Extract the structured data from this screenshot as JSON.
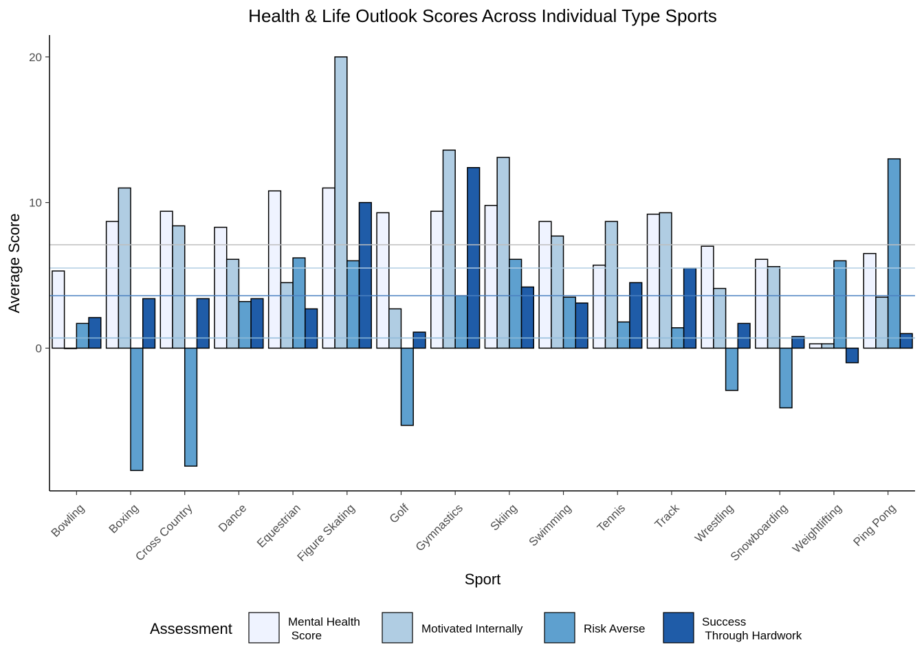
{
  "chart_data": {
    "type": "bar",
    "title": "Health & Life Outlook Scores Across Individual Type Sports",
    "xlabel": "Sport",
    "ylabel": "Average Score",
    "ylim": [
      -9.8,
      21.5
    ],
    "yticks": [
      0,
      10,
      20
    ],
    "grid": false,
    "legend_title": "Assessment",
    "legend_position": "bottom",
    "categories": [
      "Bowling",
      "Boxing",
      "Cross Country",
      "Dance",
      "Equestrian",
      "Figure Skating",
      "Golf",
      "Gymnastics",
      "Skiing",
      "Swimming",
      "Tennis",
      "Track",
      "Wrestling",
      "Snowboarding",
      "Weightlifting",
      "Ping Pong"
    ],
    "series": [
      {
        "name": "Mental Health\n Score",
        "color": "#eff3ff",
        "values": [
          5.3,
          8.7,
          9.4,
          8.3,
          10.8,
          11.0,
          9.3,
          9.4,
          9.8,
          8.7,
          5.7,
          9.2,
          7.0,
          6.1,
          0.3,
          6.5
        ]
      },
      {
        "name": "Motivated Internally",
        "color": "#b0cde3",
        "values": [
          0,
          11.0,
          8.4,
          6.1,
          4.5,
          20.0,
          2.7,
          13.6,
          13.1,
          7.7,
          8.7,
          9.3,
          4.1,
          5.6,
          0.3,
          3.5
        ]
      },
      {
        "name": "Risk Averse",
        "color": "#5ea0cf",
        "values": [
          1.7,
          -8.4,
          -8.1,
          3.2,
          6.2,
          6.0,
          -5.3,
          3.6,
          6.1,
          3.5,
          1.8,
          1.4,
          -2.9,
          -4.1,
          6.0,
          13.0
        ]
      },
      {
        "name": "Success\n Through Hardwork",
        "color": "#1f5ca8",
        "values": [
          2.1,
          3.4,
          3.4,
          3.4,
          2.7,
          10.0,
          1.1,
          12.4,
          4.2,
          3.1,
          4.5,
          5.5,
          1.7,
          0.8,
          -1.0,
          1.0
        ]
      }
    ],
    "reference_lines": [
      {
        "y": 7.1,
        "color": "#bdbdbd"
      },
      {
        "y": 5.5,
        "color": "#b0cde3"
      },
      {
        "y": 3.6,
        "color": "#4a80c0"
      },
      {
        "y": 0.7,
        "color": "#8fbad9"
      }
    ]
  }
}
